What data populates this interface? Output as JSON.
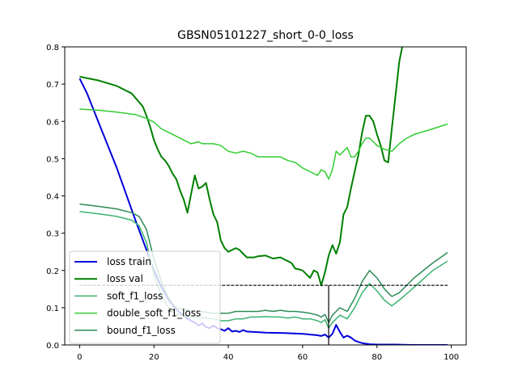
{
  "chart_data": {
    "type": "line",
    "title": "GBSN05101227_short_0-0_loss",
    "xlabel": "",
    "ylabel": "",
    "xlim": [
      -4,
      104
    ],
    "ylim": [
      0,
      0.8
    ],
    "x_ticks": [
      0,
      20,
      40,
      60,
      80,
      100
    ],
    "x_tick_labels": [
      "0",
      "20",
      "40",
      "60",
      "80",
      "100"
    ],
    "y_ticks": [
      0.0,
      0.1,
      0.2,
      0.3,
      0.4,
      0.5,
      0.6,
      0.7,
      0.8
    ],
    "y_tick_labels": [
      "0.0",
      "0.1",
      "0.2",
      "0.3",
      "0.4",
      "0.5",
      "0.6",
      "0.7",
      "0.8"
    ],
    "grid": false,
    "legend": {
      "position": "lower-left"
    },
    "series": [
      {
        "name": "loss train",
        "color": "#0000dd",
        "width": 2,
        "x": [
          0,
          2,
          5,
          10,
          15,
          18,
          20,
          22,
          24,
          26,
          28,
          30,
          31,
          32,
          33,
          34,
          35,
          36,
          37,
          38,
          39,
          40,
          41,
          42,
          43,
          44,
          45,
          50,
          55,
          60,
          62,
          64,
          65,
          66,
          67,
          68,
          69,
          70,
          71,
          72,
          73,
          74,
          75,
          76,
          78,
          80,
          85,
          90,
          95,
          99
        ],
        "y": [
          0.715,
          0.675,
          0.6,
          0.475,
          0.335,
          0.255,
          0.2,
          0.155,
          0.12,
          0.095,
          0.078,
          0.065,
          0.06,
          0.052,
          0.058,
          0.048,
          0.045,
          0.052,
          0.045,
          0.042,
          0.038,
          0.045,
          0.036,
          0.038,
          0.035,
          0.04,
          0.036,
          0.033,
          0.032,
          0.03,
          0.028,
          0.026,
          0.024,
          0.028,
          0.02,
          0.03,
          0.054,
          0.035,
          0.02,
          0.025,
          0.02,
          0.012,
          0.008,
          0.005,
          0.002,
          0.001,
          0.001,
          0.0,
          0.0,
          0.0
        ]
      },
      {
        "name": "loss val",
        "color": "#007f00",
        "width": 2,
        "x": [
          0,
          5,
          10,
          14,
          17,
          18,
          19,
          20,
          21,
          22,
          23,
          24,
          25,
          26,
          27,
          28,
          29,
          30,
          31,
          32,
          33,
          34,
          35,
          36,
          37,
          38,
          39,
          40,
          41,
          42,
          43,
          44,
          45,
          46,
          47,
          48,
          50,
          52,
          54,
          56,
          57,
          58,
          59,
          60,
          61,
          62,
          63,
          64,
          65,
          66,
          67,
          68,
          69,
          70,
          71,
          72,
          73,
          74,
          75,
          76,
          77,
          78,
          79,
          80,
          81,
          82,
          83,
          84,
          85,
          86,
          87
        ],
        "y": [
          0.72,
          0.71,
          0.695,
          0.675,
          0.64,
          0.615,
          0.585,
          0.55,
          0.525,
          0.505,
          0.495,
          0.48,
          0.46,
          0.445,
          0.415,
          0.39,
          0.355,
          0.405,
          0.455,
          0.42,
          0.425,
          0.435,
          0.39,
          0.35,
          0.33,
          0.28,
          0.26,
          0.25,
          0.255,
          0.26,
          0.255,
          0.245,
          0.235,
          0.235,
          0.235,
          0.238,
          0.24,
          0.232,
          0.235,
          0.225,
          0.22,
          0.205,
          0.203,
          0.2,
          0.19,
          0.18,
          0.2,
          0.195,
          0.16,
          0.195,
          0.24,
          0.268,
          0.245,
          0.275,
          0.35,
          0.37,
          0.42,
          0.465,
          0.51,
          0.57,
          0.615,
          0.615,
          0.6,
          0.565,
          0.535,
          0.495,
          0.49,
          0.58,
          0.67,
          0.76,
          0.81
        ]
      },
      {
        "name": "soft_f1_loss",
        "color": "#3cb371",
        "width": 1.5,
        "x": [
          0,
          5,
          10,
          14,
          16,
          18,
          19,
          20,
          21,
          22,
          23,
          24,
          25,
          26,
          27,
          28,
          30,
          32,
          34,
          36,
          38,
          40,
          42,
          44,
          46,
          48,
          50,
          52,
          54,
          56,
          58,
          60,
          62,
          64,
          65,
          66,
          67,
          68,
          70,
          72,
          74,
          76,
          78,
          80,
          82,
          84,
          86,
          90,
          95,
          99
        ],
        "y": [
          0.358,
          0.352,
          0.345,
          0.335,
          0.32,
          0.275,
          0.23,
          0.19,
          0.16,
          0.135,
          0.115,
          0.1,
          0.09,
          0.083,
          0.08,
          0.078,
          0.075,
          0.074,
          0.072,
          0.07,
          0.065,
          0.065,
          0.07,
          0.07,
          0.075,
          0.075,
          0.076,
          0.075,
          0.075,
          0.072,
          0.075,
          0.07,
          0.07,
          0.065,
          0.06,
          0.068,
          0.045,
          0.06,
          0.08,
          0.07,
          0.1,
          0.14,
          0.165,
          0.145,
          0.12,
          0.105,
          0.12,
          0.155,
          0.2,
          0.225
        ]
      },
      {
        "name": "double_soft_f1_loss",
        "color": "#32cd32",
        "width": 1.5,
        "x": [
          0,
          5,
          10,
          15,
          18,
          20,
          22,
          24,
          26,
          28,
          30,
          32,
          33,
          34,
          36,
          38,
          40,
          42,
          44,
          46,
          48,
          50,
          52,
          54,
          56,
          58,
          60,
          62,
          63,
          64,
          65,
          66,
          67,
          68,
          69,
          70,
          71,
          72,
          73,
          74,
          75,
          76,
          77,
          78,
          79,
          80,
          81,
          82,
          84,
          86,
          88,
          90,
          95,
          99
        ],
        "y": [
          0.633,
          0.63,
          0.625,
          0.618,
          0.608,
          0.598,
          0.58,
          0.57,
          0.56,
          0.55,
          0.54,
          0.545,
          0.54,
          0.54,
          0.54,
          0.535,
          0.52,
          0.515,
          0.52,
          0.515,
          0.505,
          0.505,
          0.505,
          0.505,
          0.495,
          0.49,
          0.475,
          0.465,
          0.46,
          0.455,
          0.47,
          0.465,
          0.445,
          0.47,
          0.52,
          0.51,
          0.52,
          0.53,
          0.505,
          0.505,
          0.52,
          0.54,
          0.555,
          0.555,
          0.545,
          0.535,
          0.53,
          0.525,
          0.52,
          0.54,
          0.555,
          0.565,
          0.58,
          0.593
        ]
      },
      {
        "name": "bound_f1_loss",
        "color": "#2e8b57",
        "width": 1.5,
        "x": [
          0,
          5,
          10,
          14,
          16,
          18,
          19,
          20,
          21,
          22,
          23,
          24,
          25,
          26,
          27,
          28,
          30,
          32,
          34,
          36,
          38,
          40,
          42,
          44,
          46,
          48,
          50,
          52,
          54,
          56,
          58,
          60,
          62,
          64,
          65,
          66,
          67,
          68,
          70,
          72,
          74,
          76,
          78,
          80,
          82,
          84,
          86,
          90,
          95,
          99
        ],
        "y": [
          0.378,
          0.372,
          0.365,
          0.355,
          0.345,
          0.31,
          0.27,
          0.23,
          0.2,
          0.17,
          0.145,
          0.125,
          0.11,
          0.1,
          0.097,
          0.095,
          0.092,
          0.09,
          0.088,
          0.085,
          0.085,
          0.085,
          0.09,
          0.09,
          0.09,
          0.09,
          0.093,
          0.09,
          0.093,
          0.09,
          0.09,
          0.088,
          0.085,
          0.08,
          0.075,
          0.082,
          0.06,
          0.08,
          0.1,
          0.09,
          0.125,
          0.17,
          0.2,
          0.18,
          0.15,
          0.13,
          0.14,
          0.18,
          0.22,
          0.248
        ]
      }
    ],
    "reference_lines": [
      {
        "orientation": "horizontal",
        "y": 0.16,
        "x_from": 0,
        "x_to": 99,
        "color": "#000000",
        "style": "dashed"
      },
      {
        "orientation": "vertical",
        "x": 67,
        "y_from": 0,
        "y_to": 0.16,
        "color": "#000000",
        "style": "solid"
      }
    ]
  }
}
